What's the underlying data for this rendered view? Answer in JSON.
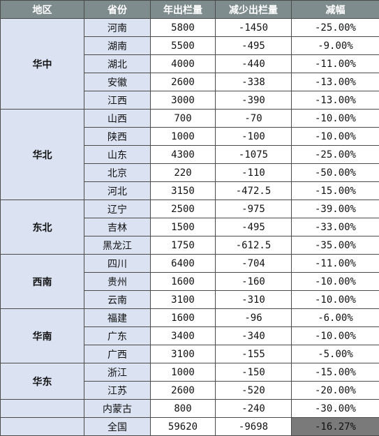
{
  "headers": [
    "地区",
    "省份",
    "年出栏量",
    "减少出栏量",
    "减幅"
  ],
  "regions": [
    {
      "name": "华中",
      "rows": [
        {
          "province": "河南",
          "output": "5800",
          "decrease": "-1450",
          "pct": "-25.00%"
        },
        {
          "province": "湖南",
          "output": "5500",
          "decrease": "-495",
          "pct": "-9.00%"
        },
        {
          "province": "湖北",
          "output": "4000",
          "decrease": "-440",
          "pct": "-11.00%"
        },
        {
          "province": "安徽",
          "output": "2600",
          "decrease": "-338",
          "pct": "-13.00%"
        },
        {
          "province": "江西",
          "output": "3000",
          "decrease": "-390",
          "pct": "-13.00%"
        }
      ]
    },
    {
      "name": "华北",
      "rows": [
        {
          "province": "山西",
          "output": "700",
          "decrease": "-70",
          "pct": "-10.00%"
        },
        {
          "province": "陕西",
          "output": "1000",
          "decrease": "-100",
          "pct": "-10.00%"
        },
        {
          "province": "山东",
          "output": "4300",
          "decrease": "-1075",
          "pct": "-25.00%"
        },
        {
          "province": "北京",
          "output": "220",
          "decrease": "-110",
          "pct": "-50.00%"
        },
        {
          "province": "河北",
          "output": "3150",
          "decrease": "-472.5",
          "pct": "-15.00%"
        }
      ]
    },
    {
      "name": "东北",
      "rows": [
        {
          "province": "辽宁",
          "output": "2500",
          "decrease": "-975",
          "pct": "-39.00%"
        },
        {
          "province": "吉林",
          "output": "1500",
          "decrease": "-495",
          "pct": "-33.00%"
        },
        {
          "province": "黑龙江",
          "output": "1750",
          "decrease": "-612.5",
          "pct": "-35.00%"
        }
      ]
    },
    {
      "name": "西南",
      "rows": [
        {
          "province": "四川",
          "output": "6400",
          "decrease": "-704",
          "pct": "-11.00%"
        },
        {
          "province": "贵州",
          "output": "1600",
          "decrease": "-160",
          "pct": "-10.00%"
        },
        {
          "province": "云南",
          "output": "3100",
          "decrease": "-310",
          "pct": "-10.00%"
        }
      ]
    },
    {
      "name": "华南",
      "rows": [
        {
          "province": "福建",
          "output": "1600",
          "decrease": "-96",
          "pct": "-6.00%"
        },
        {
          "province": "广东",
          "output": "3400",
          "decrease": "-340",
          "pct": "-10.00%"
        },
        {
          "province": "广西",
          "output": "3100",
          "decrease": "-155",
          "pct": "-5.00%"
        }
      ]
    },
    {
      "name": "华东",
      "rows": [
        {
          "province": "浙江",
          "output": "1000",
          "decrease": "-150",
          "pct": "-15.00%"
        },
        {
          "province": "江苏",
          "output": "2600",
          "decrease": "-520",
          "pct": "-20.00%"
        }
      ]
    },
    {
      "name": "",
      "rows": [
        {
          "province": "内蒙古",
          "output": "800",
          "decrease": "-240",
          "pct": "-30.00%"
        }
      ]
    }
  ],
  "total": {
    "label": "全国",
    "output": "59620",
    "decrease": "-9698",
    "pct": "-16.27%"
  },
  "colors": {
    "header_bg": "#7f8c8d",
    "label_bg": "#dbe3f3",
    "total_pct_bg": "#7a7a7a",
    "border": "#4a4a4a"
  }
}
